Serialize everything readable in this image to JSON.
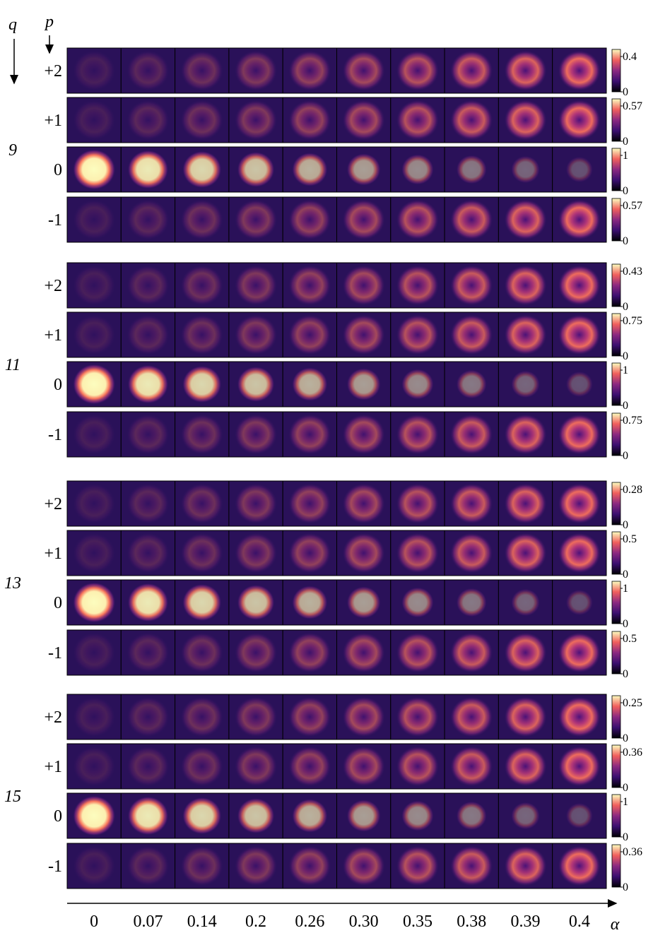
{
  "axes": {
    "q_label": "q",
    "p_label": "p",
    "alpha_label": "α"
  },
  "alpha": [
    "0",
    "0.07",
    "0.14",
    "0.2",
    "0.26",
    "0.30",
    "0.35",
    "0.38",
    "0.39",
    "0.4"
  ],
  "groups": [
    {
      "q": "9",
      "rows": [
        {
          "p": "+2",
          "colorbar_ticks": [
            0,
            0.4
          ]
        },
        {
          "p": "+1",
          "colorbar_ticks": [
            0,
            0.57
          ]
        },
        {
          "p": "0",
          "colorbar_ticks": [
            0,
            1
          ]
        },
        {
          "p": "-1",
          "colorbar_ticks": [
            0,
            0.57
          ]
        }
      ]
    },
    {
      "q": "11",
      "rows": [
        {
          "p": "+2",
          "colorbar_ticks": [
            0,
            0.43
          ]
        },
        {
          "p": "+1",
          "colorbar_ticks": [
            0,
            0.75
          ]
        },
        {
          "p": "0",
          "colorbar_ticks": [
            0,
            1
          ]
        },
        {
          "p": "-1",
          "colorbar_ticks": [
            0,
            0.75
          ]
        }
      ]
    },
    {
      "q": "13",
      "rows": [
        {
          "p": "+2",
          "colorbar_ticks": [
            0,
            0.28
          ]
        },
        {
          "p": "+1",
          "colorbar_ticks": [
            0,
            0.5
          ]
        },
        {
          "p": "0",
          "colorbar_ticks": [
            0,
            1
          ]
        },
        {
          "p": "-1",
          "colorbar_ticks": [
            0,
            0.5
          ]
        }
      ]
    },
    {
      "q": "15",
      "rows": [
        {
          "p": "+2",
          "colorbar_ticks": [
            0,
            0.25
          ]
        },
        {
          "p": "+1",
          "colorbar_ticks": [
            0,
            0.36
          ]
        },
        {
          "p": "0",
          "colorbar_ticks": [
            0,
            1
          ]
        },
        {
          "p": "-1",
          "colorbar_ticks": [
            0,
            0.36
          ]
        }
      ]
    }
  ]
}
